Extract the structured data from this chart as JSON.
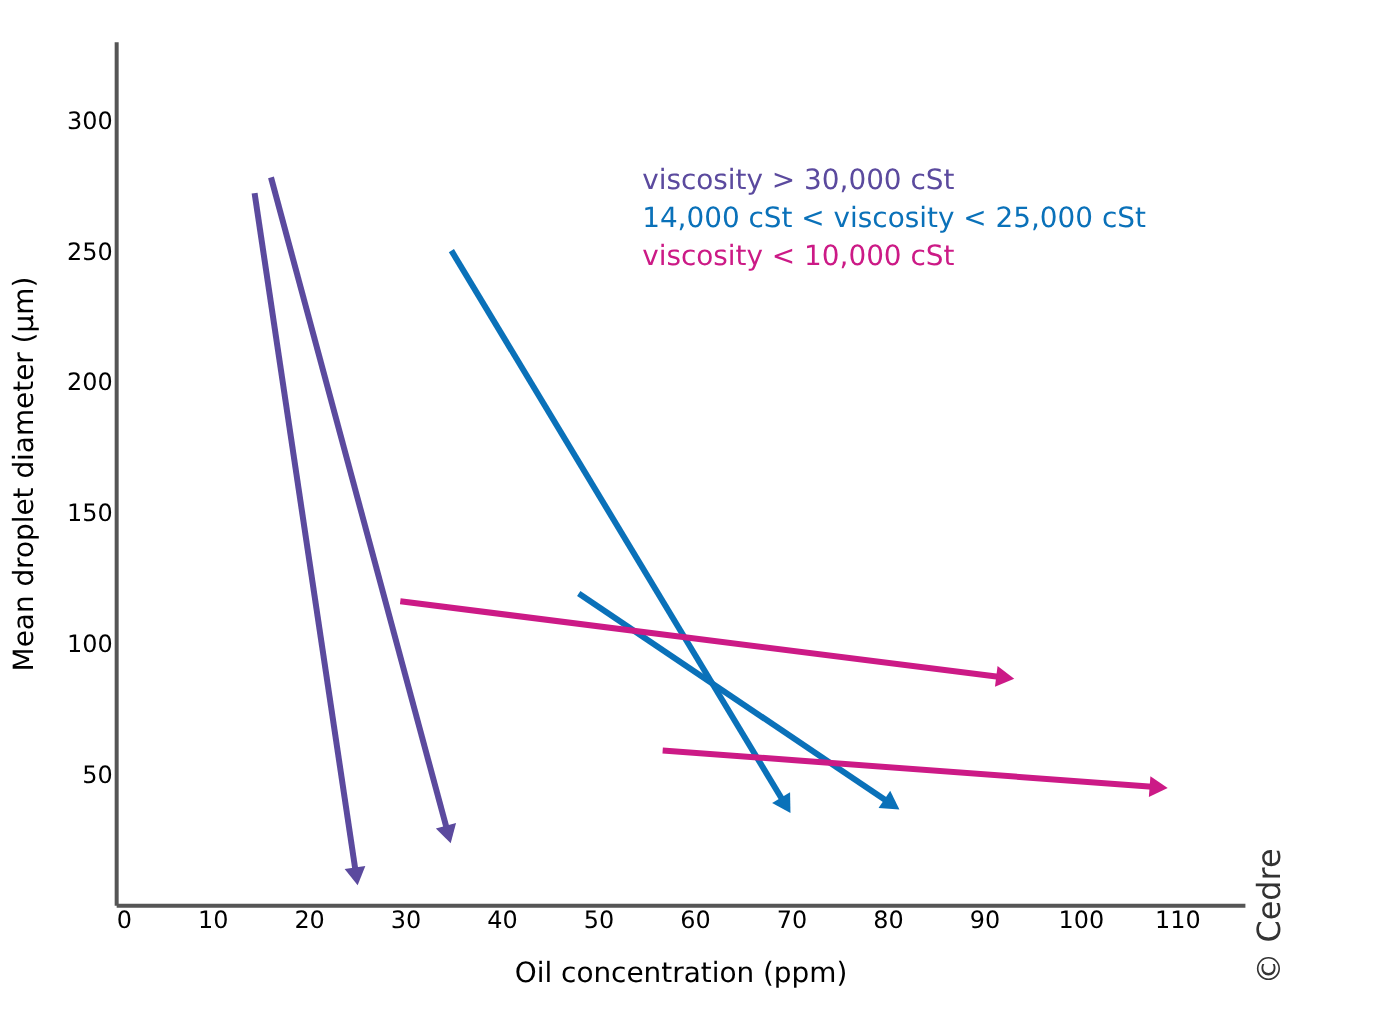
{
  "chart_data": {
    "type": "line",
    "xlabel": "Oil concentration (ppm)",
    "ylabel": "Mean droplet diameter (µm)",
    "xlim": [
      0,
      117
    ],
    "xticks": [
      0,
      10,
      20,
      30,
      40,
      50,
      60,
      70,
      80,
      90,
      100,
      110
    ],
    "ylim": [
      0,
      330
    ],
    "yticks": [
      50,
      100,
      150,
      200,
      250,
      300
    ],
    "grid": false,
    "legend": "top right",
    "line_style": "solid",
    "series": [
      {
        "name": "viscosity > 30,000 cSt",
        "color": "#5b4a9e",
        "x": [
          14.4,
          24.9
        ],
        "values": [
          272,
          12
        ]
      },
      {
        "color": "#5b4a9e",
        "x": [
          16.1,
          34.4
        ],
        "values": [
          278,
          28
        ]
      },
      {
        "name": "14,000 cSt < viscosity < 25,000 cSt",
        "color": "#0a71b9",
        "x": [
          34.8,
          69.3
        ],
        "values": [
          250,
          39
        ]
      },
      {
        "color": "#0a71b9",
        "x": [
          48.0,
          80.2
        ],
        "values": [
          119,
          39
        ]
      },
      {
        "name": "viscosity < 10,000 cSt",
        "color": "#cc1a86",
        "x": [
          29.5,
          91.9
        ],
        "values": [
          116,
          87
        ]
      },
      {
        "color": "#cc1a86",
        "x": [
          56.7,
          107.8
        ],
        "values": [
          59,
          45
        ]
      }
    ],
    "annotations": [
      "© Cedre"
    ]
  }
}
